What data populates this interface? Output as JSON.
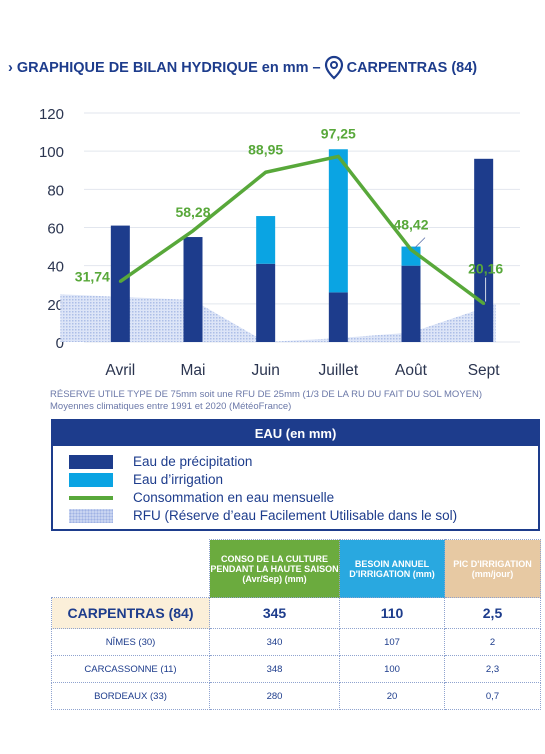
{
  "title": {
    "prefix": "› GRAPHIQUE DE BILAN HYDRIQUE en mm –",
    "location": "CARPENTRAS (84)",
    "pin_icon": "location-pin-icon"
  },
  "chart_data": {
    "type": "bar",
    "categories": [
      "Avril",
      "Mai",
      "Juin",
      "Juillet",
      "Août",
      "Sept"
    ],
    "series": [
      {
        "name": "Eau de précipitation",
        "type": "bar",
        "color": "#1d3c8c",
        "values": [
          61,
          55,
          41,
          26,
          40,
          96
        ]
      },
      {
        "name": "Eau d’irrigation",
        "type": "bar",
        "color": "#0aa4e3",
        "values": [
          0,
          0,
          25,
          75,
          10,
          0
        ]
      },
      {
        "name": "Consommation en eau mensuelle",
        "type": "line",
        "color": "#58a83a",
        "values": [
          31.74,
          58.28,
          88.95,
          97.25,
          48.42,
          20.16
        ]
      },
      {
        "name": "RFU (Réserve d’eau Facilement Utilisable dans le sol)",
        "type": "area",
        "color": "#b9c9ee",
        "values": [
          25,
          22,
          0,
          2,
          5,
          20
        ]
      }
    ],
    "data_labels": [
      "31,74",
      "58,28",
      "88,95",
      "97,25",
      "48,42",
      "20,16"
    ],
    "yticks": [
      "0",
      "20",
      "40",
      "60",
      "80",
      "100",
      "120"
    ],
    "ylim": [
      0,
      120
    ],
    "grid": true,
    "legend_position": "below"
  },
  "notes": [
    "RÉSERVE UTILE TYPE DE 75mm soit une RFU DE 25mm (1/3 DE LA RU DU FAIT DU SOL MOYEN)",
    "Moyennes climatiques entre 1991 et 2020 (MétéoFrance)"
  ],
  "legend": {
    "header": "EAU (en mm)",
    "items": [
      "Eau de précipitation",
      "Eau d’irrigation",
      "Consommation en eau mensuelle",
      "RFU (Réserve d’eau Facilement Utilisable dans le sol)"
    ]
  },
  "table": {
    "headers": [
      "CONSO DE LA CULTURE PENDANT LA HAUTE SAISON (Avr/Sep) (mm)",
      "BESOIN ANNUEL D'IRRIGATION (mm)",
      "PIC D'IRRIGATION (mm/jour)"
    ],
    "rows": [
      [
        "CARPENTRAS (84)",
        "345",
        "110",
        "2,5"
      ],
      [
        "NÎMES (30)",
        "340",
        "107",
        "2"
      ],
      [
        "CARCASSONNE (11)",
        "348",
        "100",
        "2,3"
      ],
      [
        "BORDEAUX (33)",
        "280",
        "20",
        "0,7"
      ]
    ],
    "colors": {
      "conso": "#6bab3e",
      "besoin": "#29a8e0",
      "pic": "#e7c9a3",
      "highlight": "#fbefd9"
    }
  }
}
